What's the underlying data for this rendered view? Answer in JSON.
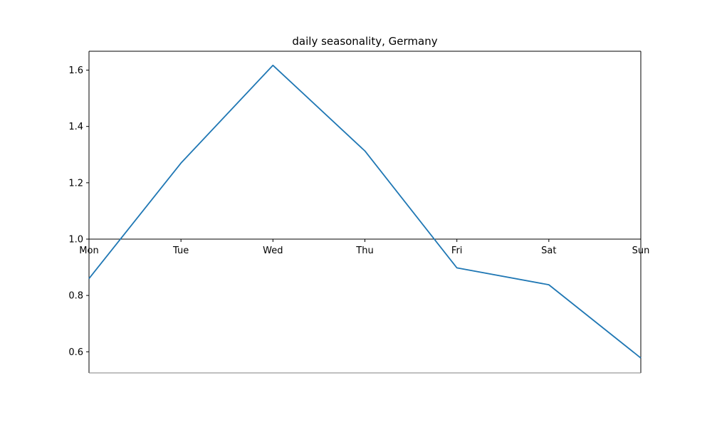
{
  "chart_data": {
    "type": "line",
    "title": "daily seasonality, Germany",
    "xlabel": "",
    "ylabel": "",
    "categories": [
      "Mon",
      "Tue",
      "Wed",
      "Thu",
      "Fri",
      "Sat",
      "Sun"
    ],
    "series": [
      {
        "values": [
          0.86,
          1.27,
          1.617,
          1.313,
          0.898,
          0.838,
          0.578
        ]
      }
    ],
    "ylim": [
      0.525,
      1.667
    ],
    "yticks": [
      "0.6",
      "0.8",
      "1.0",
      "1.2",
      "1.4",
      "1.6"
    ],
    "x_axis_at_y": 1.0,
    "grid": false,
    "colors": {
      "line": "#1f77b4",
      "axis": "#000000",
      "bottom_spine": "#808080"
    }
  }
}
